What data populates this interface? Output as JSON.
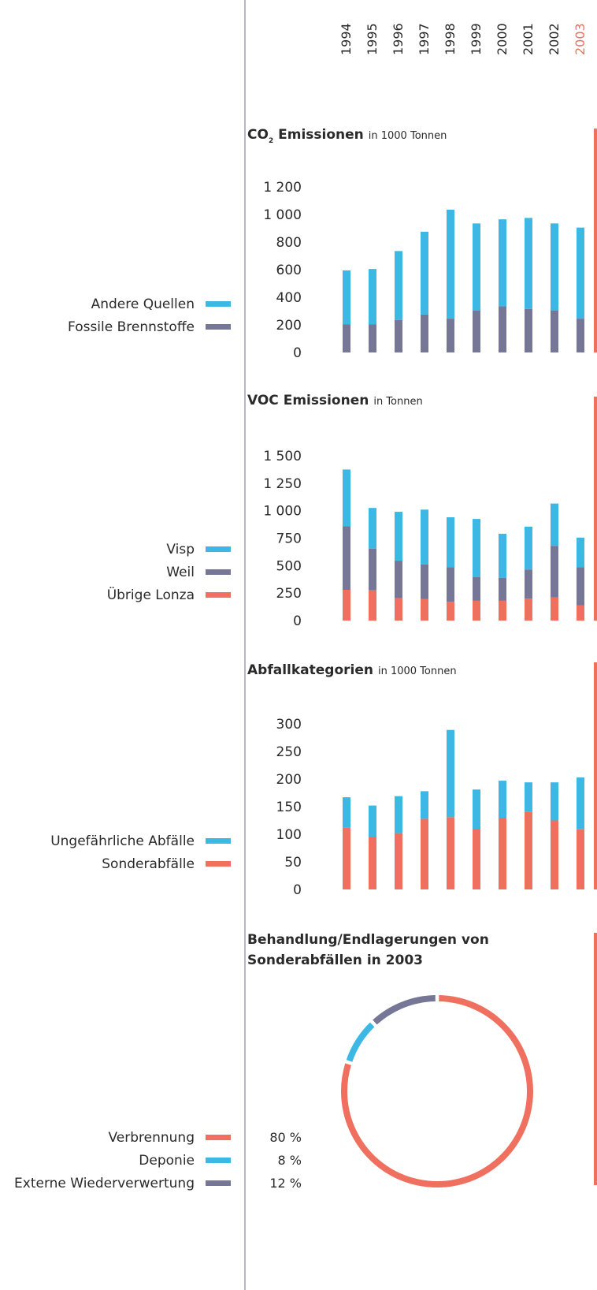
{
  "years": [
    "1994",
    "1995",
    "1996",
    "1997",
    "1998",
    "1999",
    "2000",
    "2001",
    "2002",
    "2003"
  ],
  "highlight_year": "2003",
  "colors": {
    "blue": "#3db7e4",
    "grey": "#767696",
    "red": "#f07060",
    "axis": "#6f6f7f",
    "text": "#2a2a2a"
  },
  "chart_data": [
    {
      "type": "bar",
      "stacked": true,
      "title_html": "CO<tspan baseline-shift='sub' font-size='9'>2</tspan> Emissionen",
      "title": "CO2 Emissionen",
      "unit": "in 1000 Tonnen",
      "categories": [
        "1994",
        "1995",
        "1996",
        "1997",
        "1998",
        "1999",
        "2000",
        "2001",
        "2002",
        "2003"
      ],
      "ylim": [
        0,
        1200
      ],
      "yticks": [
        "0",
        "200",
        "400",
        "600",
        "800",
        "1 000",
        "1 200"
      ],
      "ytick_values": [
        0,
        200,
        400,
        600,
        800,
        1000,
        1200
      ],
      "series": [
        {
          "name": "Fossile Brennstoffe",
          "color_key": "grey",
          "values": [
            205,
            205,
            235,
            275,
            245,
            305,
            335,
            315,
            305,
            245
          ]
        },
        {
          "name": "Andere Quellen",
          "color_key": "blue",
          "values": [
            390,
            400,
            500,
            600,
            790,
            630,
            630,
            660,
            630,
            660
          ]
        }
      ],
      "legend_order": [
        "Andere Quellen",
        "Fossile Brennstoffe"
      ]
    },
    {
      "type": "bar",
      "stacked": true,
      "title": "VOC Emissionen",
      "unit": "in Tonnen",
      "categories": [
        "1994",
        "1995",
        "1996",
        "1997",
        "1998",
        "1999",
        "2000",
        "2001",
        "2002",
        "2003"
      ],
      "ylim": [
        0,
        1500
      ],
      "yticks": [
        "0",
        "250",
        "500",
        "750",
        "1 000",
        "1 250",
        "1 500"
      ],
      "ytick_values": [
        0,
        250,
        500,
        750,
        1000,
        1250,
        1500
      ],
      "series": [
        {
          "name": "Übrige Lonza",
          "color_key": "red",
          "values": [
            280,
            275,
            205,
            195,
            170,
            180,
            180,
            200,
            210,
            140
          ]
        },
        {
          "name": "Weil",
          "color_key": "grey",
          "values": [
            580,
            380,
            340,
            315,
            315,
            215,
            210,
            265,
            470,
            345
          ]
        },
        {
          "name": "Visp",
          "color_key": "blue",
          "values": [
            515,
            370,
            445,
            500,
            455,
            530,
            400,
            390,
            385,
            270
          ]
        }
      ],
      "legend_order": [
        "Visp",
        "Weil",
        "Übrige Lonza"
      ]
    },
    {
      "type": "bar",
      "stacked": true,
      "title": "Abfallkategorien",
      "unit": "in 1000 Tonnen",
      "categories": [
        "1994",
        "1995",
        "1996",
        "1997",
        "1998",
        "1999",
        "2000",
        "2001",
        "2002",
        "2003"
      ],
      "ylim": [
        0,
        300
      ],
      "yticks": [
        "0",
        "50",
        "100",
        "150",
        "200",
        "250",
        "300"
      ],
      "ytick_values": [
        0,
        50,
        100,
        150,
        200,
        250,
        300
      ],
      "series": [
        {
          "name": "Sonderabfälle",
          "color_key": "red",
          "values": [
            112,
            95,
            102,
            128,
            131,
            110,
            130,
            141,
            125,
            109
          ]
        },
        {
          "name": "Ungefährliche Abfälle",
          "color_key": "blue",
          "values": [
            55,
            57,
            67,
            50,
            158,
            71,
            67,
            53,
            69,
            94
          ]
        }
      ],
      "legend_order": [
        "Ungefährliche Abfälle",
        "Sonderabfälle"
      ]
    },
    {
      "type": "pie",
      "style": "ring",
      "title": "Behandlung/Endlagerungen von Sonderabfällen in 2003",
      "title_lines": [
        "Behandlung/Endlagerungen von",
        "Sonderabfällen in 2003"
      ],
      "slices": [
        {
          "name": "Verbrennung",
          "value": 80,
          "label": "80 %",
          "color_key": "red"
        },
        {
          "name": "Deponie",
          "value": 8,
          "label": "8 %",
          "color_key": "blue"
        },
        {
          "name": "Externe Wiederverwertung",
          "value": 12,
          "label": "12 %",
          "color_key": "grey"
        }
      ]
    }
  ]
}
